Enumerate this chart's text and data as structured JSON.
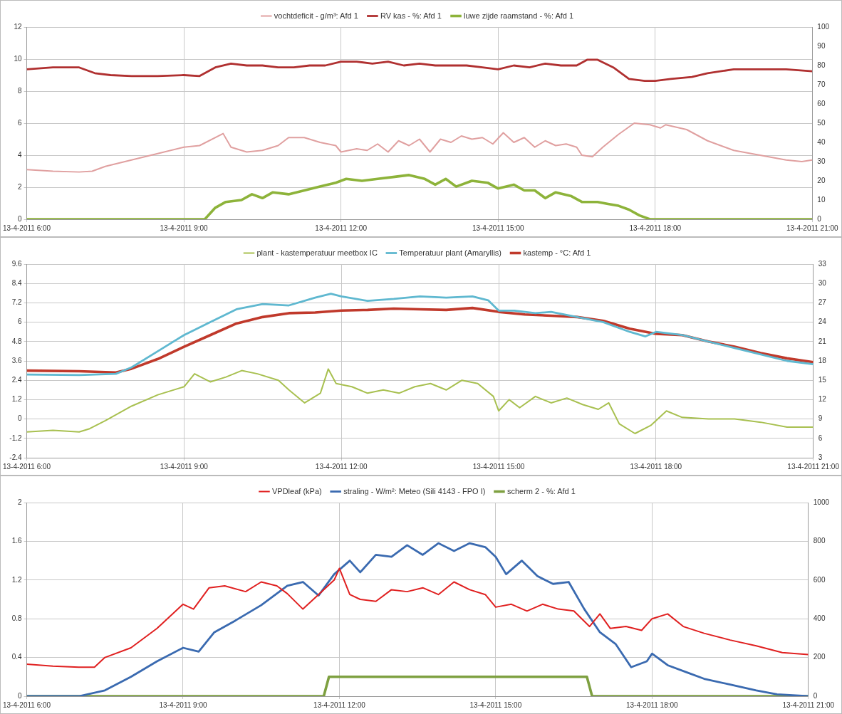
{
  "chart_data": [
    {
      "type": "line",
      "xlim": [
        "2011-04-13T06:00",
        "2011-04-13T21:00"
      ],
      "xticks": [
        {
          "value": "2011-04-13T06:00",
          "label": "13-4-2011 6:00"
        },
        {
          "value": "2011-04-13T09:00",
          "label": "13-4-2011 9:00"
        },
        {
          "value": "2011-04-13T12:00",
          "label": "13-4-2011 12:00"
        },
        {
          "value": "2011-04-13T15:00",
          "label": "13-4-2011 15:00"
        },
        {
          "value": "2011-04-13T18:00",
          "label": "13-4-2011 18:00"
        },
        {
          "value": "2011-04-13T21:00",
          "label": "13-4-2011 21:00"
        }
      ],
      "ylim": [
        0,
        12
      ],
      "yticks": [
        0,
        2,
        4,
        6,
        8,
        10,
        12
      ],
      "y2lim": [
        0,
        100
      ],
      "y2ticks": [
        0,
        10,
        20,
        30,
        40,
        50,
        60,
        70,
        80,
        90,
        100
      ],
      "grid": true,
      "legend": "top",
      "marker": "none",
      "series": [
        {
          "name": "vochtdeficit - g/m³: Afd 1",
          "color": "#e0a0a0",
          "x": [
            "2011-04-13T06:00",
            "2011-04-13T06:30",
            "2011-04-13T07:00",
            "2011-04-13T07:15",
            "2011-04-13T07:30",
            "2011-04-13T08:00",
            "2011-04-13T08:30",
            "2011-04-13T09:00",
            "2011-04-13T09:18",
            "2011-04-13T09:45",
            "2011-04-13T09:54",
            "2011-04-13T10:12",
            "2011-04-13T10:30",
            "2011-04-13T10:48",
            "2011-04-13T11:00",
            "2011-04-13T11:18",
            "2011-04-13T11:36",
            "2011-04-13T11:54",
            "2011-04-13T12:00",
            "2011-04-13T12:18",
            "2011-04-13T12:30",
            "2011-04-13T12:42",
            "2011-04-13T12:54",
            "2011-04-13T13:06",
            "2011-04-13T13:18",
            "2011-04-13T13:30",
            "2011-04-13T13:42",
            "2011-04-13T13:54",
            "2011-04-13T14:06",
            "2011-04-13T14:18",
            "2011-04-13T14:30",
            "2011-04-13T14:42",
            "2011-04-13T14:54",
            "2011-04-13T15:06",
            "2011-04-13T15:18",
            "2011-04-13T15:30",
            "2011-04-13T15:42",
            "2011-04-13T15:54",
            "2011-04-13T16:06",
            "2011-04-13T16:18",
            "2011-04-13T16:30",
            "2011-04-13T16:36",
            "2011-04-13T16:48",
            "2011-04-13T17:00",
            "2011-04-13T17:18",
            "2011-04-13T17:36",
            "2011-04-13T17:54",
            "2011-04-13T18:06",
            "2011-04-13T18:12",
            "2011-04-13T18:36",
            "2011-04-13T19:00",
            "2011-04-13T19:30",
            "2011-04-13T20:00",
            "2011-04-13T20:30",
            "2011-04-13T20:48",
            "2011-04-13T21:00"
          ],
          "values": [
            3.1,
            3,
            2.95,
            3,
            3.3,
            3.7,
            4.1,
            4.5,
            4.6,
            5.35,
            4.5,
            4.2,
            4.3,
            4.6,
            5.1,
            5.1,
            4.8,
            4.6,
            4.2,
            4.4,
            4.3,
            4.7,
            4.2,
            4.9,
            4.6,
            5,
            4.2,
            5,
            4.8,
            5.2,
            5,
            5.1,
            4.7,
            5.4,
            4.8,
            5.1,
            4.5,
            4.9,
            4.6,
            4.7,
            4.5,
            4,
            3.9,
            4.5,
            5.3,
            6,
            5.9,
            5.7,
            5.9,
            5.6,
            4.9,
            4.3,
            4,
            3.7,
            3.6,
            3.7
          ]
        },
        {
          "name": "RV kas - %: Afd 1",
          "color": "#b03030",
          "axis": "y2",
          "x": [
            "2011-04-13T06:00",
            "2011-04-13T06:30",
            "2011-04-13T07:00",
            "2011-04-13T07:18",
            "2011-04-13T07:36",
            "2011-04-13T08:00",
            "2011-04-13T08:30",
            "2011-04-13T09:00",
            "2011-04-13T09:18",
            "2011-04-13T09:36",
            "2011-04-13T09:54",
            "2011-04-13T10:12",
            "2011-04-13T10:30",
            "2011-04-13T10:48",
            "2011-04-13T11:06",
            "2011-04-13T11:24",
            "2011-04-13T11:42",
            "2011-04-13T12:00",
            "2011-04-13T12:18",
            "2011-04-13T12:36",
            "2011-04-13T12:54",
            "2011-04-13T13:12",
            "2011-04-13T13:30",
            "2011-04-13T13:48",
            "2011-04-13T14:06",
            "2011-04-13T14:24",
            "2011-04-13T14:42",
            "2011-04-13T15:00",
            "2011-04-13T15:18",
            "2011-04-13T15:36",
            "2011-04-13T15:54",
            "2011-04-13T16:12",
            "2011-04-13T16:30",
            "2011-04-13T16:42",
            "2011-04-13T16:54",
            "2011-04-13T17:12",
            "2011-04-13T17:30",
            "2011-04-13T17:48",
            "2011-04-13T18:00",
            "2011-04-13T18:18",
            "2011-04-13T18:42",
            "2011-04-13T19:00",
            "2011-04-13T19:30",
            "2011-04-13T20:00",
            "2011-04-13T20:30",
            "2011-04-13T21:00"
          ],
          "values": [
            78,
            79,
            79,
            76,
            75,
            74.5,
            74.5,
            75,
            74.5,
            79,
            81,
            80,
            80,
            79,
            79,
            80,
            80,
            82,
            82,
            81,
            82,
            80,
            81,
            80,
            80,
            80,
            79,
            78,
            80,
            79,
            81,
            80,
            80,
            83,
            83,
            79,
            73,
            72,
            72,
            73,
            74,
            76,
            78,
            78,
            78,
            77
          ]
        },
        {
          "name": "luwe zijde raamstand - %: Afd 1",
          "color": "#8db33a",
          "axis": "y2",
          "x": [
            "2011-04-13T06:00",
            "2011-04-13T09:24",
            "2011-04-13T09:36",
            "2011-04-13T09:48",
            "2011-04-13T10:06",
            "2011-04-13T10:18",
            "2011-04-13T10:30",
            "2011-04-13T10:42",
            "2011-04-13T11:00",
            "2011-04-13T11:18",
            "2011-04-13T11:36",
            "2011-04-13T11:54",
            "2011-04-13T12:06",
            "2011-04-13T12:24",
            "2011-04-13T12:42",
            "2011-04-13T13:00",
            "2011-04-13T13:18",
            "2011-04-13T13:36",
            "2011-04-13T13:48",
            "2011-04-13T14:00",
            "2011-04-13T14:12",
            "2011-04-13T14:30",
            "2011-04-13T14:48",
            "2011-04-13T15:00",
            "2011-04-13T15:18",
            "2011-04-13T15:30",
            "2011-04-13T15:42",
            "2011-04-13T15:54",
            "2011-04-13T16:06",
            "2011-04-13T16:24",
            "2011-04-13T16:36",
            "2011-04-13T16:54",
            "2011-04-13T17:06",
            "2011-04-13T17:18",
            "2011-04-13T17:30",
            "2011-04-13T17:42",
            "2011-04-13T17:54",
            "2011-04-13T21:00"
          ],
          "values": [
            0,
            0,
            6,
            9,
            10,
            13,
            11,
            14,
            13,
            15,
            17,
            19,
            21,
            20,
            21,
            22,
            23,
            21,
            18,
            21,
            17,
            20,
            19,
            16,
            18,
            15,
            15,
            11,
            14,
            12,
            9,
            9,
            8,
            7,
            5,
            2,
            0,
            0
          ]
        }
      ]
    },
    {
      "type": "line",
      "xlim": [
        "2011-04-13T06:00",
        "2011-04-13T21:00"
      ],
      "xticks": [
        {
          "value": "2011-04-13T06:00",
          "label": "13-4-2011 6:00"
        },
        {
          "value": "2011-04-13T09:00",
          "label": "13-4-2011 9:00"
        },
        {
          "value": "2011-04-13T12:00",
          "label": "13-4-2011 12:00"
        },
        {
          "value": "2011-04-13T15:00",
          "label": "13-4-2011 15:00"
        },
        {
          "value": "2011-04-13T18:00",
          "label": "13-4-2011 18:00"
        },
        {
          "value": "2011-04-13T21:00",
          "label": "13-4-2011 21:00"
        }
      ],
      "ylim": [
        -2.4,
        9.6
      ],
      "yticks": [
        -2.4,
        -1.2,
        0,
        1.2,
        2.4,
        3.6,
        4.8,
        6,
        7.2,
        8.4,
        9.6
      ],
      "y2lim": [
        3,
        33
      ],
      "y2ticks": [
        3,
        6,
        9,
        12,
        15,
        18,
        21,
        24,
        27,
        30,
        33
      ],
      "grid": true,
      "legend": "top",
      "marker": "none",
      "series": [
        {
          "name": "plant - kastemperatuur meetbox IC",
          "color": "#a8c050",
          "x": [
            "2011-04-13T06:00",
            "2011-04-13T06:30",
            "2011-04-13T07:00",
            "2011-04-13T07:12",
            "2011-04-13T07:30",
            "2011-04-13T08:00",
            "2011-04-13T08:30",
            "2011-04-13T09:00",
            "2011-04-13T09:12",
            "2011-04-13T09:30",
            "2011-04-13T09:48",
            "2011-04-13T10:06",
            "2011-04-13T10:24",
            "2011-04-13T10:48",
            "2011-04-13T11:00",
            "2011-04-13T11:18",
            "2011-04-13T11:36",
            "2011-04-13T11:45",
            "2011-04-13T11:54",
            "2011-04-13T12:12",
            "2011-04-13T12:30",
            "2011-04-13T12:48",
            "2011-04-13T13:06",
            "2011-04-13T13:24",
            "2011-04-13T13:42",
            "2011-04-13T14:00",
            "2011-04-13T14:18",
            "2011-04-13T14:36",
            "2011-04-13T14:54",
            "2011-04-13T15:00",
            "2011-04-13T15:12",
            "2011-04-13T15:24",
            "2011-04-13T15:42",
            "2011-04-13T16:00",
            "2011-04-13T16:18",
            "2011-04-13T16:36",
            "2011-04-13T16:54",
            "2011-04-13T17:06",
            "2011-04-13T17:18",
            "2011-04-13T17:36",
            "2011-04-13T17:54",
            "2011-04-13T18:12",
            "2011-04-13T18:30",
            "2011-04-13T19:00",
            "2011-04-13T19:30",
            "2011-04-13T20:00",
            "2011-04-13T20:30",
            "2011-04-13T21:00"
          ],
          "values": [
            -0.8,
            -0.7,
            -0.8,
            -0.6,
            -0.1,
            0.8,
            1.5,
            2,
            2.8,
            2.3,
            2.6,
            3,
            2.8,
            2.4,
            1.8,
            1,
            1.6,
            3.1,
            2.2,
            2,
            1.6,
            1.8,
            1.6,
            2,
            2.2,
            1.8,
            2.4,
            2.2,
            1.4,
            0.5,
            1.2,
            0.7,
            1.4,
            1,
            1.3,
            0.9,
            0.6,
            1,
            -0.3,
            -0.9,
            -0.4,
            0.5,
            0.1,
            0,
            0,
            -0.2,
            -0.5,
            -0.5
          ]
        },
        {
          "name": "Temperatuur plant (Amaryllis)",
          "color": "#5fb8d0",
          "axis": "y2",
          "x": [
            "2011-04-13T06:00",
            "2011-04-13T07:00",
            "2011-04-13T07:42",
            "2011-04-13T08:00",
            "2011-04-13T08:30",
            "2011-04-13T09:00",
            "2011-04-13T09:30",
            "2011-04-13T10:00",
            "2011-04-13T10:30",
            "2011-04-13T11:00",
            "2011-04-13T11:30",
            "2011-04-13T11:48",
            "2011-04-13T12:00",
            "2011-04-13T12:30",
            "2011-04-13T13:00",
            "2011-04-13T13:30",
            "2011-04-13T14:00",
            "2011-04-13T14:30",
            "2011-04-13T14:48",
            "2011-04-13T15:00",
            "2011-04-13T15:18",
            "2011-04-13T15:42",
            "2011-04-13T16:00",
            "2011-04-13T16:30",
            "2011-04-13T17:00",
            "2011-04-13T17:30",
            "2011-04-13T17:48",
            "2011-04-13T18:00",
            "2011-04-13T18:30",
            "2011-04-13T19:00",
            "2011-04-13T19:30",
            "2011-04-13T20:00",
            "2011-04-13T20:30",
            "2011-04-13T21:00"
          ],
          "values": [
            15.9,
            15.8,
            16,
            17,
            19.5,
            22,
            24,
            26,
            26.8,
            26.6,
            27.8,
            28.4,
            28,
            27.3,
            27.6,
            28,
            27.8,
            28,
            27.4,
            25.8,
            25.8,
            25.4,
            25.6,
            24.8,
            24,
            22.5,
            21.8,
            22.5,
            22,
            21,
            20,
            19,
            18,
            17.5
          ]
        },
        {
          "name": "kastemp - °C: Afd 1",
          "color": "#c0392b",
          "axis": "y2",
          "x": [
            "2011-04-13T06:00",
            "2011-04-13T07:00",
            "2011-04-13T07:42",
            "2011-04-13T08:00",
            "2011-04-13T08:30",
            "2011-04-13T09:00",
            "2011-04-13T09:30",
            "2011-04-13T10:00",
            "2011-04-13T10:30",
            "2011-04-13T11:00",
            "2011-04-13T11:30",
            "2011-04-13T12:00",
            "2011-04-13T12:30",
            "2011-04-13T13:00",
            "2011-04-13T13:30",
            "2011-04-13T14:00",
            "2011-04-13T14:30",
            "2011-04-13T15:00",
            "2011-04-13T15:30",
            "2011-04-13T16:00",
            "2011-04-13T16:30",
            "2011-04-13T17:00",
            "2011-04-13T17:30",
            "2011-04-13T18:00",
            "2011-04-13T18:30",
            "2011-04-13T19:00",
            "2011-04-13T19:30",
            "2011-04-13T20:00",
            "2011-04-13T20:30",
            "2011-04-13T21:00"
          ],
          "values": [
            16.5,
            16.4,
            16.2,
            16.8,
            18.3,
            20.2,
            22,
            23.8,
            24.8,
            25.4,
            25.5,
            25.8,
            25.9,
            26.1,
            26,
            25.9,
            26.2,
            25.6,
            25.2,
            25,
            24.8,
            24.2,
            23,
            22.2,
            22,
            21,
            20.2,
            19.2,
            18.4,
            17.8
          ]
        }
      ]
    },
    {
      "type": "line",
      "xlim": [
        "2011-04-13T06:00",
        "2011-04-13T21:00"
      ],
      "xticks": [
        {
          "value": "2011-04-13T06:00",
          "label": "13-4-2011 6:00"
        },
        {
          "value": "2011-04-13T09:00",
          "label": "13-4-2011 9:00"
        },
        {
          "value": "2011-04-13T12:00",
          "label": "13-4-2011 12:00"
        },
        {
          "value": "2011-04-13T15:00",
          "label": "13-4-2011 15:00"
        },
        {
          "value": "2011-04-13T18:00",
          "label": "13-4-2011 18:00"
        },
        {
          "value": "2011-04-13T21:00",
          "label": "13-4-2011 21:00"
        }
      ],
      "ylim": [
        0,
        2
      ],
      "yticks": [
        0,
        0.4,
        0.8,
        1.2,
        1.6,
        2
      ],
      "y2lim": [
        0,
        1000
      ],
      "y2ticks": [
        0,
        200,
        400,
        600,
        800,
        1000
      ],
      "grid": true,
      "legend": "top",
      "marker": "none",
      "series": [
        {
          "name": "VPDleaf (kPa)",
          "color": "#e02020",
          "x": [
            "2011-04-13T06:00",
            "2011-04-13T06:30",
            "2011-04-13T07:00",
            "2011-04-13T07:18",
            "2011-04-13T07:30",
            "2011-04-13T08:00",
            "2011-04-13T08:30",
            "2011-04-13T09:00",
            "2011-04-13T09:12",
            "2011-04-13T09:30",
            "2011-04-13T09:48",
            "2011-04-13T10:12",
            "2011-04-13T10:30",
            "2011-04-13T10:48",
            "2011-04-13T11:00",
            "2011-04-13T11:18",
            "2011-04-13T11:36",
            "2011-04-13T11:54",
            "2011-04-13T12:00",
            "2011-04-13T12:12",
            "2011-04-13T12:24",
            "2011-04-13T12:42",
            "2011-04-13T13:00",
            "2011-04-13T13:18",
            "2011-04-13T13:36",
            "2011-04-13T13:54",
            "2011-04-13T14:12",
            "2011-04-13T14:30",
            "2011-04-13T14:48",
            "2011-04-13T15:00",
            "2011-04-13T15:18",
            "2011-04-13T15:36",
            "2011-04-13T15:54",
            "2011-04-13T16:12",
            "2011-04-13T16:30",
            "2011-04-13T16:48",
            "2011-04-13T17:00",
            "2011-04-13T17:12",
            "2011-04-13T17:30",
            "2011-04-13T17:48",
            "2011-04-13T18:00",
            "2011-04-13T18:18",
            "2011-04-13T18:36",
            "2011-04-13T19:00",
            "2011-04-13T19:30",
            "2011-04-13T20:00",
            "2011-04-13T20:30",
            "2011-04-13T21:00"
          ],
          "values": [
            0.33,
            0.31,
            0.3,
            0.3,
            0.4,
            0.5,
            0.7,
            0.95,
            0.9,
            1.12,
            1.14,
            1.08,
            1.18,
            1.14,
            1.06,
            0.9,
            1.05,
            1.2,
            1.32,
            1.05,
            1,
            0.98,
            1.1,
            1.08,
            1.12,
            1.05,
            1.18,
            1.1,
            1.05,
            0.92,
            0.95,
            0.88,
            0.95,
            0.9,
            0.88,
            0.72,
            0.85,
            0.7,
            0.72,
            0.68,
            0.8,
            0.85,
            0.72,
            0.65,
            0.58,
            0.52,
            0.45,
            0.43
          ]
        },
        {
          "name": "straling - W/m²: Meteo (Sili 4143 - FPO I)",
          "color": "#3a6ab0",
          "axis": "y2",
          "x": [
            "2011-04-13T06:00",
            "2011-04-13T07:00",
            "2011-04-13T07:30",
            "2011-04-13T08:00",
            "2011-04-13T08:30",
            "2011-04-13T09:00",
            "2011-04-13T09:18",
            "2011-04-13T09:36",
            "2011-04-13T10:00",
            "2011-04-13T10:30",
            "2011-04-13T11:00",
            "2011-04-13T11:18",
            "2011-04-13T11:36",
            "2011-04-13T11:54",
            "2011-04-13T12:12",
            "2011-04-13T12:24",
            "2011-04-13T12:42",
            "2011-04-13T13:00",
            "2011-04-13T13:18",
            "2011-04-13T13:36",
            "2011-04-13T13:54",
            "2011-04-13T14:12",
            "2011-04-13T14:30",
            "2011-04-13T14:48",
            "2011-04-13T15:00",
            "2011-04-13T15:12",
            "2011-04-13T15:30",
            "2011-04-13T15:48",
            "2011-04-13T16:06",
            "2011-04-13T16:24",
            "2011-04-13T16:42",
            "2011-04-13T17:00",
            "2011-04-13T17:18",
            "2011-04-13T17:36",
            "2011-04-13T17:54",
            "2011-04-13T18:00",
            "2011-04-13T18:18",
            "2011-04-13T18:42",
            "2011-04-13T19:00",
            "2011-04-13T19:30",
            "2011-04-13T20:00",
            "2011-04-13T20:24",
            "2011-04-13T21:00"
          ],
          "values": [
            0,
            0,
            30,
            100,
            180,
            250,
            230,
            330,
            390,
            470,
            570,
            590,
            520,
            630,
            700,
            640,
            730,
            720,
            780,
            730,
            790,
            750,
            790,
            770,
            720,
            630,
            700,
            620,
            580,
            590,
            450,
            330,
            270,
            150,
            180,
            220,
            160,
            120,
            90,
            60,
            30,
            10,
            0
          ]
        },
        {
          "name": "scherm 2 - %: Afd 1",
          "color": "#7ea040",
          "axis": "y2",
          "x": [
            "2011-04-13T06:00",
            "2011-04-13T11:42",
            "2011-04-13T11:48",
            "2011-04-13T16:45",
            "2011-04-13T16:51",
            "2011-04-13T21:00"
          ],
          "values": [
            0,
            0,
            100,
            100,
            0,
            0
          ]
        }
      ]
    }
  ]
}
